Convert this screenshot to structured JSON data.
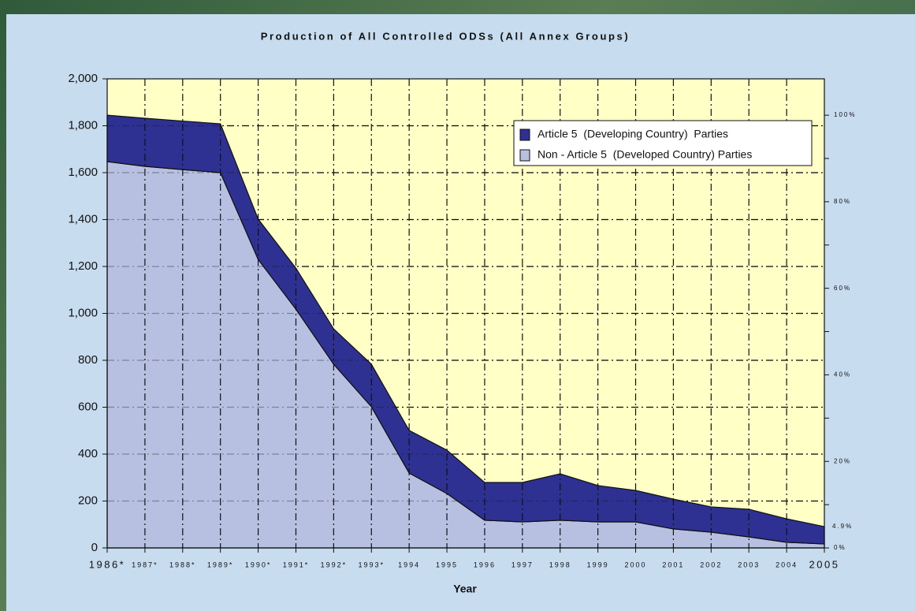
{
  "chart_data": {
    "type": "stacked_area",
    "title": "Production of All Controlled ODSs (All Annex Groups)",
    "x_label": "Year",
    "categories": [
      "1986*",
      "1987*",
      "1988*",
      "1989*",
      "1990*",
      "1991*",
      "1992*",
      "1993*",
      "1994",
      "1995",
      "1996",
      "1997",
      "1998",
      "1999",
      "2000",
      "2001",
      "2002",
      "2003",
      "2004",
      "2005"
    ],
    "series": [
      {
        "name": "Article 5  (Developing Country)  Parties",
        "color": "#2e3192",
        "values": [
          198,
          205,
          207,
          208,
          172,
          175,
          151,
          181,
          182,
          185,
          161,
          168,
          198,
          155,
          134,
          127,
          108,
          118,
          100,
          74
        ]
      },
      {
        "name": "Non - Article 5  (Developed Country) Parties",
        "color": "#b8c0e2",
        "values": [
          1647,
          1627,
          1613,
          1600,
          1230,
          1018,
          783,
          602,
          319,
          232,
          118,
          111,
          118,
          111,
          111,
          81,
          67,
          47,
          24,
          17
        ]
      }
    ],
    "ylim": [
      0,
      2000
    ],
    "yticks": [
      0,
      200,
      400,
      600,
      800,
      {
        "value": 1000,
        "label": "1,000"
      },
      {
        "value": 1200,
        "label": "1,200"
      },
      {
        "value": 1400,
        "label": "1,400"
      },
      {
        "value": 1600,
        "label": "1,600"
      },
      {
        "value": 1800,
        "label": "1,800"
      },
      {
        "value": 2000,
        "label": "2,000"
      }
    ],
    "y2lim": [
      0,
      108.4
    ],
    "y2ticks": [
      {
        "value": 0,
        "label": "0%"
      },
      {
        "value": 20,
        "label": "20%"
      },
      {
        "value": 40,
        "label": "40%"
      },
      {
        "value": 60,
        "label": "60%"
      },
      {
        "value": 80,
        "label": "80%"
      },
      {
        "value": 100,
        "label": "100%"
      }
    ],
    "y2minor_ticks": [
      10,
      30,
      50,
      70,
      90
    ],
    "annotation": {
      "text": "4.9%",
      "y2": 4.9
    },
    "grid": true,
    "plot_background": "#ffffc6"
  }
}
